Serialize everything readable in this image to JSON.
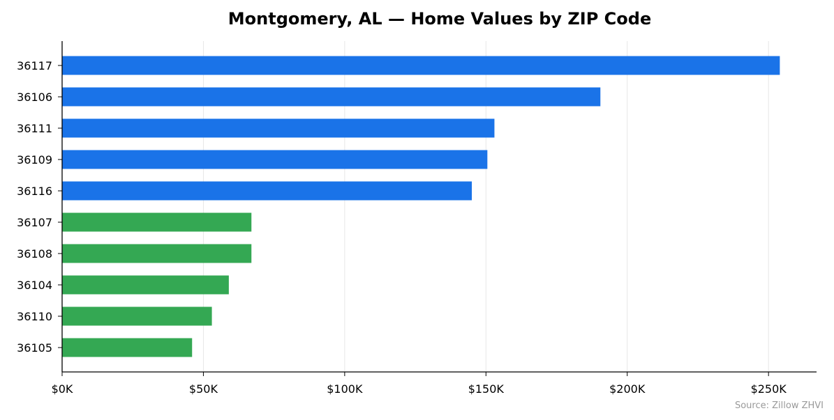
{
  "chart_data": {
    "type": "bar",
    "orientation": "horizontal",
    "title": "Montgomery, AL — Home Values by ZIP Code",
    "xlabel": "",
    "ylabel": "",
    "categories": [
      "36117",
      "36106",
      "36111",
      "36109",
      "36116",
      "36107",
      "36108",
      "36104",
      "36110",
      "36105"
    ],
    "values": [
      254000,
      190500,
      153000,
      150500,
      145000,
      67000,
      67000,
      59000,
      53000,
      46000
    ],
    "groups": [
      "high",
      "high",
      "high",
      "high",
      "high",
      "low",
      "low",
      "low",
      "low",
      "low"
    ],
    "xlim": [
      0,
      267000
    ],
    "x_ticks": [
      0,
      50000,
      100000,
      150000,
      200000,
      250000
    ],
    "x_tick_labels": [
      "$0K",
      "$50K",
      "$100K",
      "$150K",
      "$200K",
      "$250K"
    ],
    "grid": "vertical",
    "legend": "none",
    "colors": {
      "high": "#1a73e8",
      "low": "#34a853",
      "grid": "#e6e6e6",
      "axis": "#000000"
    },
    "source": "Source: Zillow ZHVI"
  }
}
